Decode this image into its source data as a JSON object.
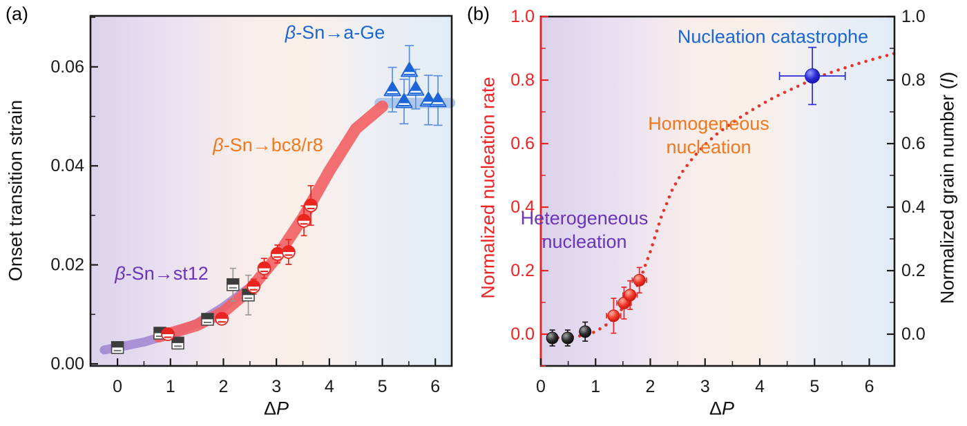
{
  "background_gradient_stops": [
    [
      "0",
      "#dbd2ec"
    ],
    [
      "0.22",
      "#e9e1f1"
    ],
    [
      "0.42",
      "#f8edea"
    ],
    [
      "0.60",
      "#fbefe9"
    ],
    [
      "0.76",
      "#edeff3"
    ],
    [
      "1",
      "#e2ecf6"
    ]
  ],
  "chart_data": [
    {
      "type": "scatter",
      "panel_letter": "(a)",
      "title": "",
      "xlabel": "ΔP",
      "ylabel": "Onset transition strain",
      "x_axis_title": {
        "delta": "Δ",
        "var": "P"
      },
      "y_axis_title": "Onset transition strain",
      "xlim": [
        -0.51,
        6.31
      ],
      "ylim": [
        -0.00042,
        0.0703
      ],
      "grid": false,
      "x_ticks": {
        "values": [
          0,
          1,
          2,
          3,
          4,
          5,
          6
        ],
        "labels": [
          "0",
          "1",
          "2",
          "3",
          "4",
          "5",
          "6"
        ],
        "minor": [
          0.5,
          1.5,
          2.5,
          3.5,
          4.5,
          5.5
        ]
      },
      "y_ticks": {
        "values": [
          0,
          0.02,
          0.04,
          0.06
        ],
        "labels": [
          "0.00",
          "0.02",
          "0.04",
          "0.06"
        ],
        "minor": [
          0.01,
          0.03,
          0.05,
          0.07
        ]
      },
      "axis_color": "#1a1a1a",
      "annotations": {
        "a_ge": {
          "beta": "β",
          "rest": "-Sn→a-Ge",
          "color": "#1a66d6"
        },
        "bc8": {
          "beta": "β",
          "rest": "-Sn→bc8/r8",
          "color": "#f0791f"
        },
        "st12": {
          "beta": "β",
          "rest": "-Sn→st12",
          "color": "#6a34bb"
        }
      },
      "bands": [
        {
          "name": "st12-trend-band",
          "color": "#9b7ed0",
          "opacity": 0.8,
          "width": 13,
          "path": [
            [
              -0.25,
              0.0028
            ],
            [
              0.5,
              0.0044
            ],
            [
              1.0,
              0.006
            ],
            [
              1.5,
              0.0082
            ],
            [
              2.0,
              0.0115
            ],
            [
              2.5,
              0.0155
            ]
          ]
        },
        {
          "name": "a-ge-plateau-band",
          "color": "#aac4e8",
          "opacity": 0.95,
          "width": 15,
          "path": [
            [
              4.95,
              0.0527
            ],
            [
              6.28,
              0.0527
            ]
          ]
        },
        {
          "name": "bc8-trend-band",
          "color": "#f25f63",
          "opacity": 0.9,
          "width": 17,
          "path": [
            [
              0.78,
              0.0055
            ],
            [
              1.5,
              0.0078
            ],
            [
              2.0,
              0.0105
            ],
            [
              2.5,
              0.015
            ],
            [
              3.0,
              0.0215
            ],
            [
              3.5,
              0.0295
            ],
            [
              4.0,
              0.039
            ],
            [
              4.5,
              0.0475
            ],
            [
              5.0,
              0.052
            ]
          ]
        }
      ],
      "series": [
        {
          "name": "β-Sn→st12",
          "marker": "half-square",
          "color": "#3c3c3c",
          "edge": "#4a4a4a",
          "err_color": "#999999",
          "cap": 9,
          "points": [
            {
              "x": 0.0,
              "y": 0.0033,
              "ey": 0.0009
            },
            {
              "x": 0.8,
              "y": 0.0062,
              "ey": 0.001
            },
            {
              "x": 1.14,
              "y": 0.0042,
              "ey": 0.0012
            },
            {
              "x": 1.7,
              "y": 0.009,
              "ey": 0.001
            },
            {
              "x": 2.18,
              "y": 0.016,
              "ey": 0.0033
            },
            {
              "x": 2.47,
              "y": 0.0139,
              "ey": 0.004
            }
          ]
        },
        {
          "name": "β-Sn→bc8/r8",
          "marker": "half-circle",
          "color": "#e8251f",
          "err_color": "#e8251f",
          "cap": 9,
          "points": [
            {
              "x": 0.95,
              "y": 0.006,
              "ey": 0.001
            },
            {
              "x": 1.97,
              "y": 0.0091,
              "ey": 0.001
            },
            {
              "x": 2.57,
              "y": 0.0156,
              "ey": 0.0015
            },
            {
              "x": 2.77,
              "y": 0.0193,
              "ey": 0.002
            },
            {
              "x": 3.02,
              "y": 0.0222,
              "ey": 0.0018
            },
            {
              "x": 3.23,
              "y": 0.0226,
              "ey": 0.0025
            },
            {
              "x": 3.52,
              "y": 0.0289,
              "ey": 0.003
            },
            {
              "x": 3.65,
              "y": 0.032,
              "ey": 0.004
            }
          ]
        },
        {
          "name": "β-Sn→a-Ge",
          "marker": "half-triangle",
          "color": "#1b65d8",
          "err_color": "#5a8fe0",
          "cap": 13,
          "points": [
            {
              "x": 5.19,
              "y": 0.0554,
              "ey": 0.0045
            },
            {
              "x": 5.51,
              "y": 0.0593,
              "ey": 0.005
            },
            {
              "x": 5.41,
              "y": 0.053,
              "ey": 0.0045
            },
            {
              "x": 5.63,
              "y": 0.0555,
              "ey": 0.004
            },
            {
              "x": 5.87,
              "y": 0.0533,
              "ey": 0.005
            },
            {
              "x": 6.05,
              "y": 0.0532,
              "ey": 0.005
            }
          ]
        }
      ]
    },
    {
      "type": "scatter",
      "panel_letter": "(b)",
      "title": "",
      "xlabel": "ΔP",
      "ylabel_left": "Normalized nucleation rate",
      "ylabel_right": "Normalized grain number (I)",
      "x_axis_title": {
        "delta": "Δ",
        "var": "P"
      },
      "y_axis_title_left": "Normalized nucleation rate",
      "y_axis_title_right": {
        "prefix": "Normalized grain number (",
        "var": "I",
        "suffix": ")"
      },
      "xlim": [
        0,
        6.46
      ],
      "ylim": [
        -0.1,
        1.0
      ],
      "grid": false,
      "left_axis_color": "#ee2222",
      "right_axis_color": "#1a1a1a",
      "x_ticks": {
        "values": [
          0,
          1,
          2,
          3,
          4,
          5,
          6
        ],
        "labels": [
          "0",
          "1",
          "2",
          "3",
          "4",
          "5",
          "6"
        ],
        "minor": [
          0.5,
          1.5,
          2.5,
          3.5,
          4.5,
          5.5
        ]
      },
      "y_ticks": {
        "values": [
          0,
          0.2,
          0.4,
          0.6,
          0.8,
          1.0
        ],
        "labels": [
          "0.0",
          "0.2",
          "0.4",
          "0.6",
          "0.8",
          "1.0"
        ],
        "minor": [
          -0.1,
          0.1,
          0.3,
          0.5,
          0.7,
          0.9
        ]
      },
      "annotations": {
        "catastrophe": {
          "text": "Nucleation catastrophe",
          "color": "#1a66d6"
        },
        "homogeneous": {
          "line1": "Homogeneous",
          "line2": "nucleation",
          "color": "#f0791f"
        },
        "heterogeneous": {
          "line1": "Heterogeneous",
          "line2": "nucleation",
          "color": "#6a34bb"
        }
      },
      "curve": {
        "name": "nucleation-rate-fit",
        "style": "dotted",
        "color": "#e8332b",
        "dot_radius": 2.3,
        "dot_spacing": 10.5,
        "points": [
          [
            0.18,
            -0.012
          ],
          [
            0.5,
            -0.01
          ],
          [
            0.8,
            -0.004
          ],
          [
            1.0,
            0.008
          ],
          [
            1.2,
            0.03
          ],
          [
            1.4,
            0.062
          ],
          [
            1.6,
            0.105
          ],
          [
            1.8,
            0.165
          ],
          [
            2.0,
            0.26
          ],
          [
            2.2,
            0.37
          ],
          [
            2.4,
            0.455
          ],
          [
            2.6,
            0.515
          ],
          [
            2.8,
            0.56
          ],
          [
            3.0,
            0.597
          ],
          [
            3.2,
            0.628
          ],
          [
            3.4,
            0.654
          ],
          [
            3.6,
            0.678
          ],
          [
            3.8,
            0.7
          ],
          [
            4.0,
            0.72
          ],
          [
            4.2,
            0.74
          ],
          [
            4.4,
            0.757
          ],
          [
            4.6,
            0.773
          ],
          [
            4.8,
            0.789
          ],
          [
            5.0,
            0.804
          ],
          [
            5.2,
            0.818
          ],
          [
            5.4,
            0.83
          ],
          [
            5.6,
            0.841
          ],
          [
            5.8,
            0.852
          ],
          [
            6.0,
            0.862
          ],
          [
            6.2,
            0.872
          ],
          [
            6.4,
            0.881
          ],
          [
            6.46,
            0.884
          ]
        ]
      },
      "series": [
        {
          "name": "heterogeneous-nucleation-points",
          "marker": "sphere",
          "size": 8.5,
          "gradient_id": "gradBlack",
          "palette": {
            "light": "#a6a6a6",
            "mid": "#2f2f2f",
            "dark": "#000000"
          },
          "edge": "#111111",
          "err_color": "#1a1a1a",
          "cap": 8,
          "points": [
            {
              "x": 0.21,
              "y": -0.012,
              "ex": 0.09,
              "ey": 0.025
            },
            {
              "x": 0.49,
              "y": -0.012,
              "ex": 0.09,
              "ey": 0.025
            },
            {
              "x": 0.81,
              "y": 0.008,
              "ex": 0.09,
              "ey": 0.03
            }
          ]
        },
        {
          "name": "homogeneous-nucleation-points",
          "marker": "sphere",
          "size": 8.5,
          "gradient_id": "gradRed",
          "palette": {
            "light": "#ffb2a2",
            "mid": "#f23728",
            "dark": "#b80d05"
          },
          "edge": "#c81308",
          "err_color": "#ee2525",
          "cap": 8,
          "points": [
            {
              "x": 1.33,
              "y": 0.058,
              "ex": 0.13,
              "ey": 0.055
            },
            {
              "x": 1.52,
              "y": 0.098,
              "ex": 0.13,
              "ey": 0.05
            },
            {
              "x": 1.63,
              "y": 0.123,
              "ex": 0.13,
              "ey": 0.045
            },
            {
              "x": 1.8,
              "y": 0.17,
              "ex": 0.13,
              "ey": 0.04
            }
          ]
        },
        {
          "name": "nucleation-catastrophe-point",
          "marker": "sphere",
          "size": 10.5,
          "gradient_id": "gradBlue",
          "palette": {
            "light": "#8f9bff",
            "mid": "#2b2bd5",
            "dark": "#0d0a9e"
          },
          "edge": "#1515b0",
          "err_color": "#2a2ad8",
          "cap": 12,
          "points": [
            {
              "x": 4.96,
              "y": 0.813,
              "ex": 0.6,
              "ey": 0.09
            }
          ]
        }
      ]
    }
  ]
}
